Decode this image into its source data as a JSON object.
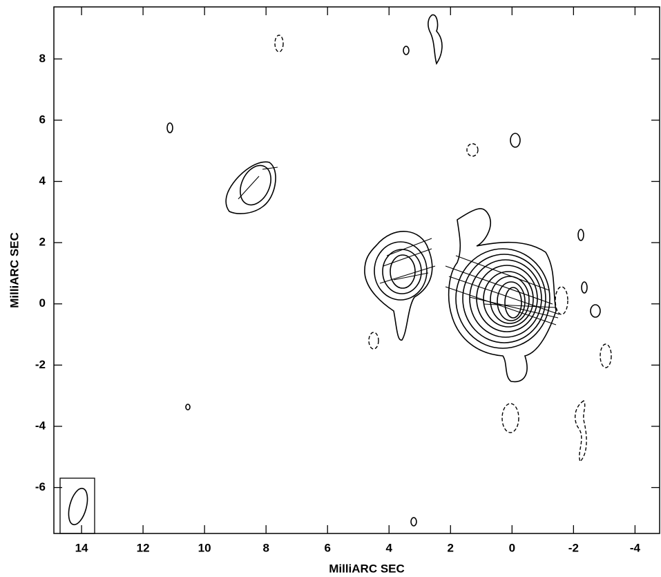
{
  "chart_data": {
    "type": "contour",
    "xlabel": "MilliARC SEC",
    "ylabel": "MilliARC SEC",
    "xlim": [
      14.9,
      -4.8
    ],
    "ylim": [
      -7.5,
      9.7
    ],
    "xticks": [
      14,
      12,
      10,
      8,
      6,
      4,
      2,
      0,
      -2,
      -4
    ],
    "yticks": [
      -6,
      -4,
      -2,
      0,
      2,
      4,
      6,
      8
    ]
  }
}
